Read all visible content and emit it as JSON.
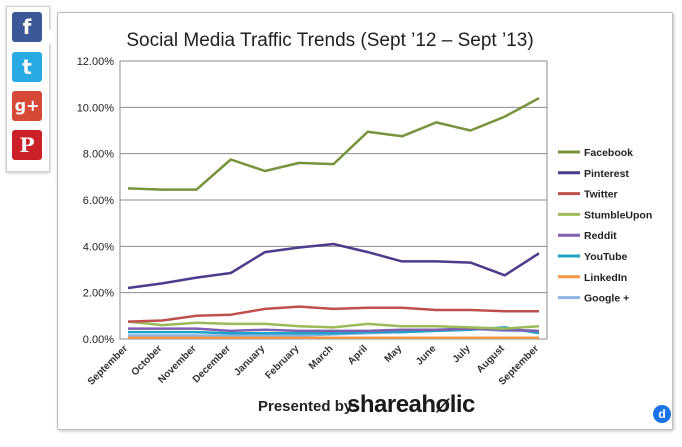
{
  "share_bar": {
    "facebook_glyph": "f",
    "twitter_glyph": "t",
    "google_plus_glyph": "g+",
    "pinterest_glyph": "P",
    "colors": {
      "facebook": "#3b5998",
      "twitter": "#27a9e1",
      "google_plus": "#d64937",
      "pinterest": "#cb2027"
    }
  },
  "footer": {
    "presented_by": "Presented by:",
    "brand": "shareahølic"
  },
  "badge": {
    "glyph": "d"
  },
  "chart_data": {
    "type": "line",
    "title": "Social Media Traffic Trends (Sept ’12 – Sept ’13)",
    "xlabel": "",
    "ylabel": "",
    "categories": [
      "September",
      "October",
      "November",
      "December",
      "January",
      "February",
      "March",
      "April",
      "May",
      "June",
      "July",
      "August",
      "September"
    ],
    "yticks": [
      "0.00%",
      "2.00%",
      "4.00%",
      "6.00%",
      "8.00%",
      "10.00%",
      "12.00%"
    ],
    "ylim": [
      0,
      12
    ],
    "grid": true,
    "legend_position": "right",
    "series": [
      {
        "name": "Facebook",
        "color": "#77933c",
        "values": [
          6.5,
          6.45,
          6.45,
          7.75,
          7.25,
          7.6,
          7.55,
          8.95,
          8.75,
          9.35,
          9.0,
          9.6,
          10.4
        ]
      },
      {
        "name": "Pinterest",
        "color": "#4f3b8c",
        "values": [
          2.2,
          2.4,
          2.65,
          2.85,
          3.75,
          3.95,
          4.1,
          3.75,
          3.35,
          3.35,
          3.3,
          2.75,
          3.7
        ]
      },
      {
        "name": "Twitter",
        "color": "#c0504d",
        "values": [
          0.75,
          0.8,
          1.0,
          1.05,
          1.3,
          1.4,
          1.3,
          1.35,
          1.35,
          1.25,
          1.25,
          1.2,
          1.2
        ]
      },
      {
        "name": "StumbleUpon",
        "color": "#9bbb59",
        "values": [
          0.75,
          0.6,
          0.7,
          0.65,
          0.65,
          0.55,
          0.5,
          0.65,
          0.55,
          0.55,
          0.5,
          0.45,
          0.55
        ]
      },
      {
        "name": "Reddit",
        "color": "#7f5fb0",
        "values": [
          0.45,
          0.45,
          0.45,
          0.35,
          0.4,
          0.35,
          0.35,
          0.35,
          0.4,
          0.4,
          0.45,
          0.4,
          0.35
        ]
      },
      {
        "name": "YouTube",
        "color": "#1fa3c9",
        "values": [
          0.3,
          0.3,
          0.3,
          0.25,
          0.25,
          0.25,
          0.25,
          0.3,
          0.3,
          0.35,
          0.4,
          0.5,
          0.25
        ]
      },
      {
        "name": "LinkedIn",
        "color": "#f79646",
        "values": [
          0.05,
          0.05,
          0.05,
          0.05,
          0.05,
          0.05,
          0.05,
          0.05,
          0.05,
          0.05,
          0.05,
          0.05,
          0.05
        ]
      },
      {
        "name": "Google +",
        "color": "#8db3e2",
        "values": [
          0.15,
          0.15,
          0.15,
          0.15,
          0.15,
          0.15,
          0.2,
          0.25,
          0.3,
          0.4,
          0.45,
          0.35,
          0.35
        ]
      }
    ]
  }
}
